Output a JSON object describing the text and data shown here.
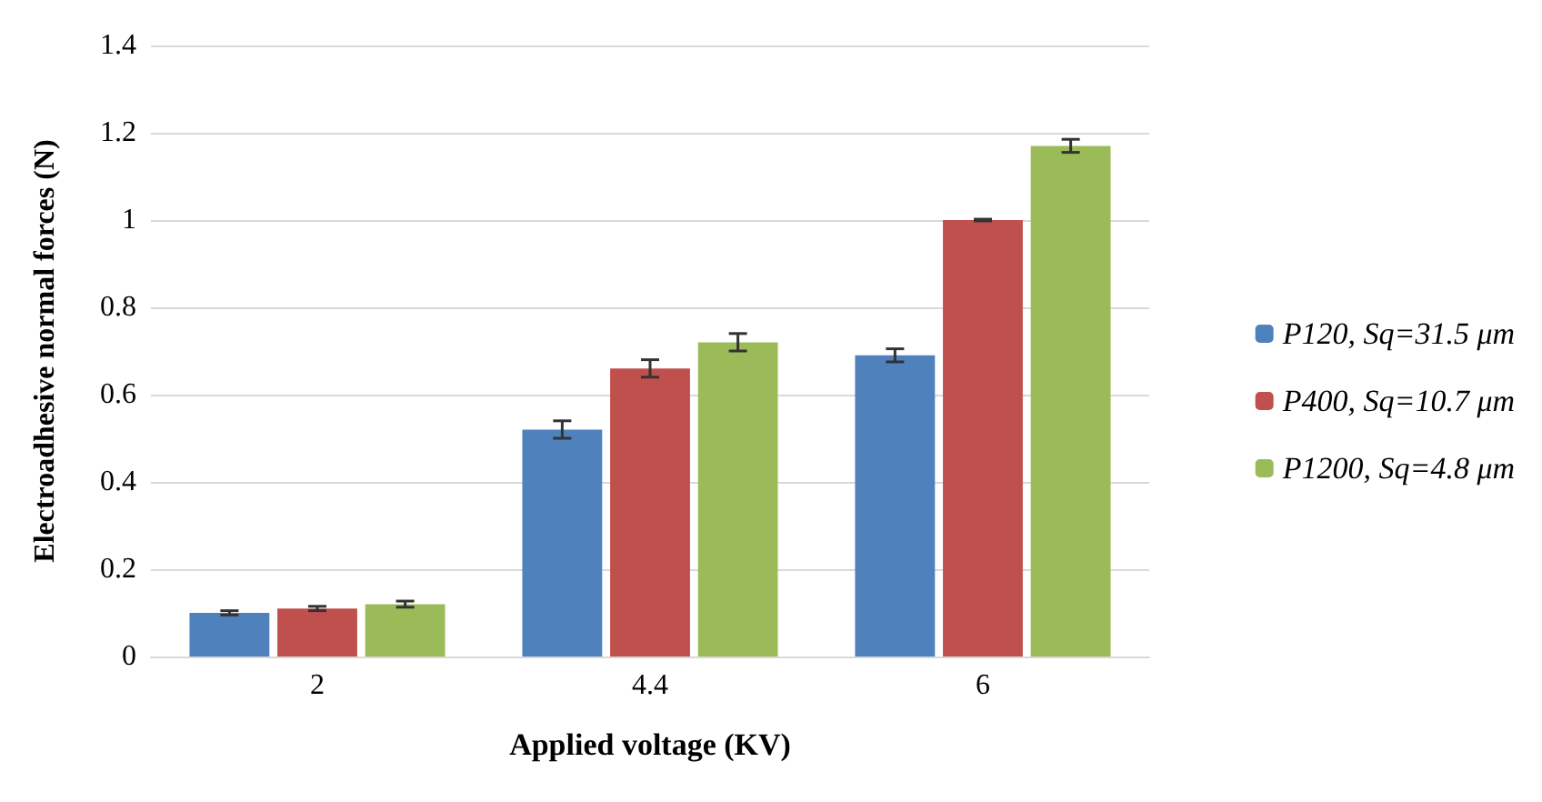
{
  "chart_data": {
    "type": "bar",
    "xlabel": "Applied voltage (KV)",
    "ylabel": "Electroadhesive normal forces (N)",
    "categories": [
      "2",
      "4.4",
      "6"
    ],
    "series": [
      {
        "name": "P120, Sq=31.5 μm",
        "color": "#4f81bd",
        "values": [
          0.1,
          0.52,
          0.69
        ],
        "errors": [
          0.005,
          0.02,
          0.015
        ]
      },
      {
        "name": "P400, Sq=10.7 μm",
        "color": "#c0504d",
        "values": [
          0.11,
          0.66,
          1.0
        ],
        "errors": [
          0.005,
          0.02,
          0.002
        ]
      },
      {
        "name": "P1200, Sq=4.8 μm",
        "color": "#9bbb59",
        "values": [
          0.12,
          0.72,
          1.17
        ],
        "errors": [
          0.007,
          0.02,
          0.015
        ]
      }
    ],
    "ylim": [
      0,
      1.4
    ],
    "yticks": [
      0,
      0.2,
      0.4,
      0.6,
      0.8,
      1,
      1.2,
      1.4
    ],
    "grid": "y",
    "legend": "right"
  }
}
